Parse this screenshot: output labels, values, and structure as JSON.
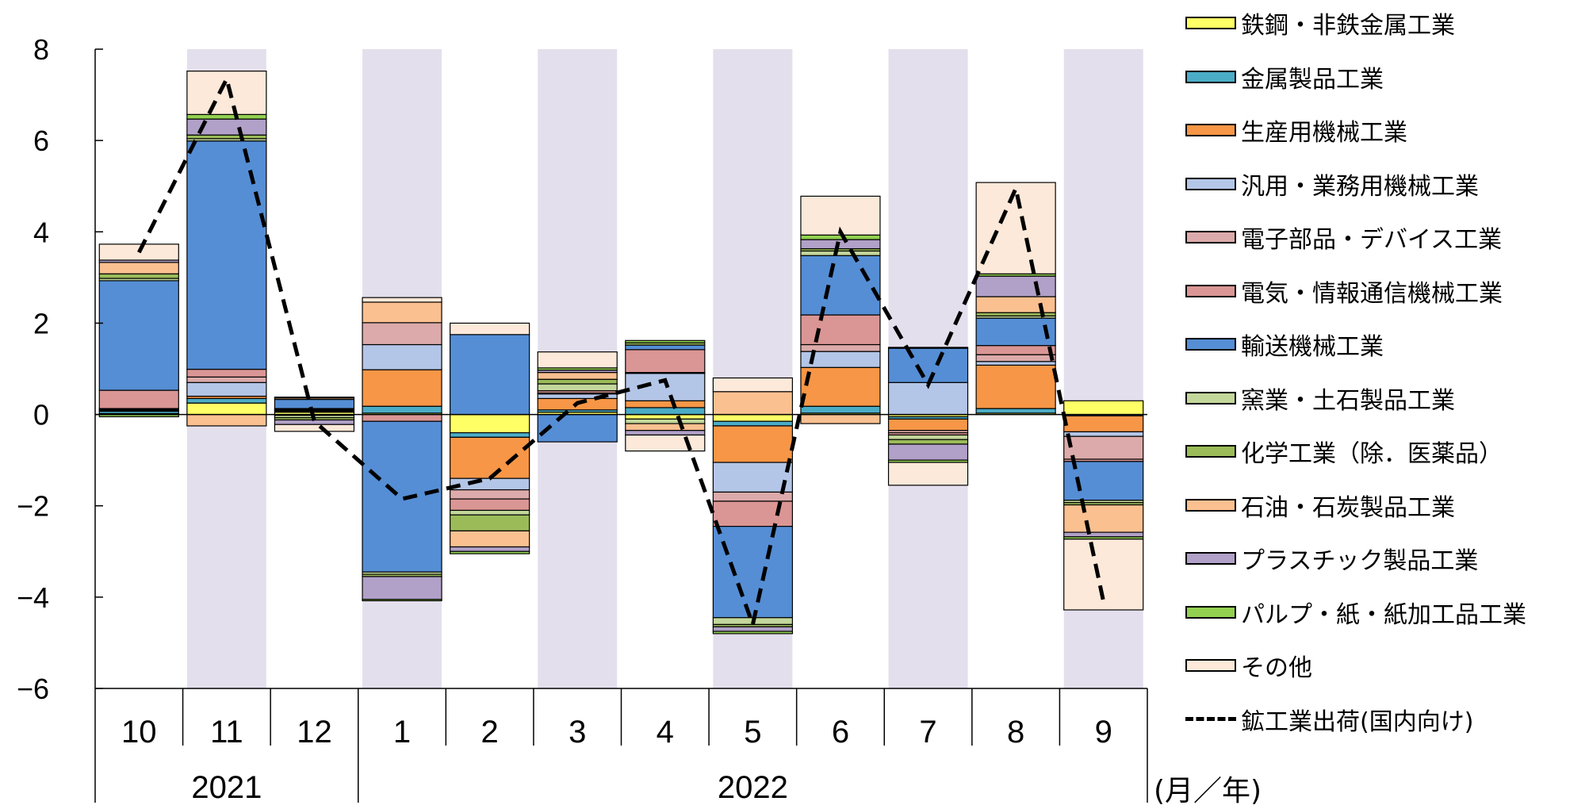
{
  "chart_data": {
    "type": "bar",
    "stacked": true,
    "ylim": [
      -6,
      8
    ],
    "yticks": [
      "8",
      "6",
      "4",
      "2",
      "0",
      "−2",
      "−4",
      "−6"
    ],
    "categories": [
      "10",
      "11",
      "12",
      "1",
      "2",
      "3",
      "4",
      "5",
      "6",
      "7",
      "8",
      "9"
    ],
    "years": [
      {
        "label": "2021",
        "from": 0,
        "to": 2
      },
      {
        "label": "2022",
        "from": 3,
        "to": 11
      }
    ],
    "shaded_columns": [
      1,
      3,
      5,
      7,
      9,
      11
    ],
    "xunit": "(月／年)",
    "series": [
      {
        "name": "鉄鋼・非鉄金属工業",
        "color": "#ffff66",
        "values": [
          0.02,
          0.25,
          0.05,
          0.03,
          -0.4,
          0.05,
          -0.1,
          -0.15,
          0.03,
          -0.05,
          0.03,
          0.3
        ]
      },
      {
        "name": "金属製品工業",
        "color": "#4bacc6",
        "values": [
          0.05,
          0.1,
          0.02,
          0.15,
          -0.1,
          0.05,
          0.15,
          -0.1,
          0.15,
          -0.05,
          0.1,
          -0.03
        ]
      },
      {
        "name": "生産用機械工業",
        "color": "#f79646",
        "values": [
          0.02,
          0.05,
          0.02,
          0.8,
          -0.9,
          0.25,
          0.15,
          -0.8,
          0.85,
          -0.25,
          0.95,
          -0.35
        ]
      },
      {
        "name": "汎用・業務用機械工業",
        "color": "#b4c6e7",
        "values": [
          0.02,
          0.3,
          0.02,
          0.55,
          -0.25,
          0.1,
          0.6,
          -0.65,
          0.35,
          0.7,
          0.08,
          -0.1
        ]
      },
      {
        "name": "電子部品・デバイス工業",
        "color": "#dcaaaa",
        "values": [
          0.02,
          0.12,
          -0.02,
          0.48,
          -0.2,
          0.02,
          0.02,
          -0.2,
          0.15,
          -0.05,
          0.15,
          -0.5
        ]
      },
      {
        "name": "電気・情報通信機械工業",
        "color": "#da9694",
        "values": [
          0.4,
          0.17,
          0.02,
          -0.15,
          -0.25,
          0.05,
          0.5,
          -0.55,
          0.65,
          -0.05,
          0.2,
          -0.05
        ]
      },
      {
        "name": "輸送機械工業",
        "color": "#558ed5",
        "values": [
          2.4,
          5.0,
          0.2,
          -3.3,
          1.75,
          -0.6,
          0.1,
          -2.0,
          1.3,
          0.75,
          0.6,
          -0.85
        ]
      },
      {
        "name": "窯業・土石製品工業",
        "color": "#c4d79b",
        "values": [
          0.05,
          0.05,
          -0.05,
          -0.05,
          -0.1,
          0.15,
          -0.1,
          -0.15,
          0.1,
          -0.1,
          0.05,
          -0.05
        ]
      },
      {
        "name": "化学工業（除．医薬品）",
        "color": "#9bbb59",
        "values": [
          0.1,
          0.08,
          -0.05,
          -0.05,
          -0.35,
          0.1,
          0.05,
          -0.05,
          0.05,
          -0.1,
          0.07,
          -0.05
        ]
      },
      {
        "name": "石油・石炭製品工業",
        "color": "#fac090",
        "values": [
          0.25,
          -0.25,
          0.03,
          0.45,
          -0.35,
          0.15,
          -0.15,
          0.5,
          -0.2,
          0.02,
          0.35,
          -0.6
        ]
      },
      {
        "name": "プラスチック製品工業",
        "color": "#b1a0c7",
        "values": [
          0.05,
          0.35,
          -0.1,
          -0.5,
          -0.1,
          0.05,
          -0.1,
          -0.1,
          0.2,
          -0.35,
          0.45,
          -0.1
        ]
      },
      {
        "name": "パルプ・紙・紙加工品工業",
        "color": "#92d050",
        "values": [
          -0.05,
          0.1,
          0.02,
          -0.03,
          -0.05,
          0.05,
          0.05,
          -0.05,
          0.1,
          -0.05,
          0.05,
          -0.05
        ]
      },
      {
        "name": "その他",
        "color": "#fde9d9",
        "values": [
          0.35,
          0.95,
          -0.15,
          0.1,
          0.25,
          0.35,
          -0.35,
          0.3,
          0.85,
          -0.5,
          2.0,
          -1.55
        ]
      }
    ],
    "line": {
      "name": "鉱工業出荷(国内向け)",
      "values": [
        3.55,
        7.35,
        -0.15,
        -1.85,
        -1.4,
        0.25,
        0.75,
        -4.6,
        4.0,
        0.65,
        4.95,
        -4.1
      ]
    }
  }
}
